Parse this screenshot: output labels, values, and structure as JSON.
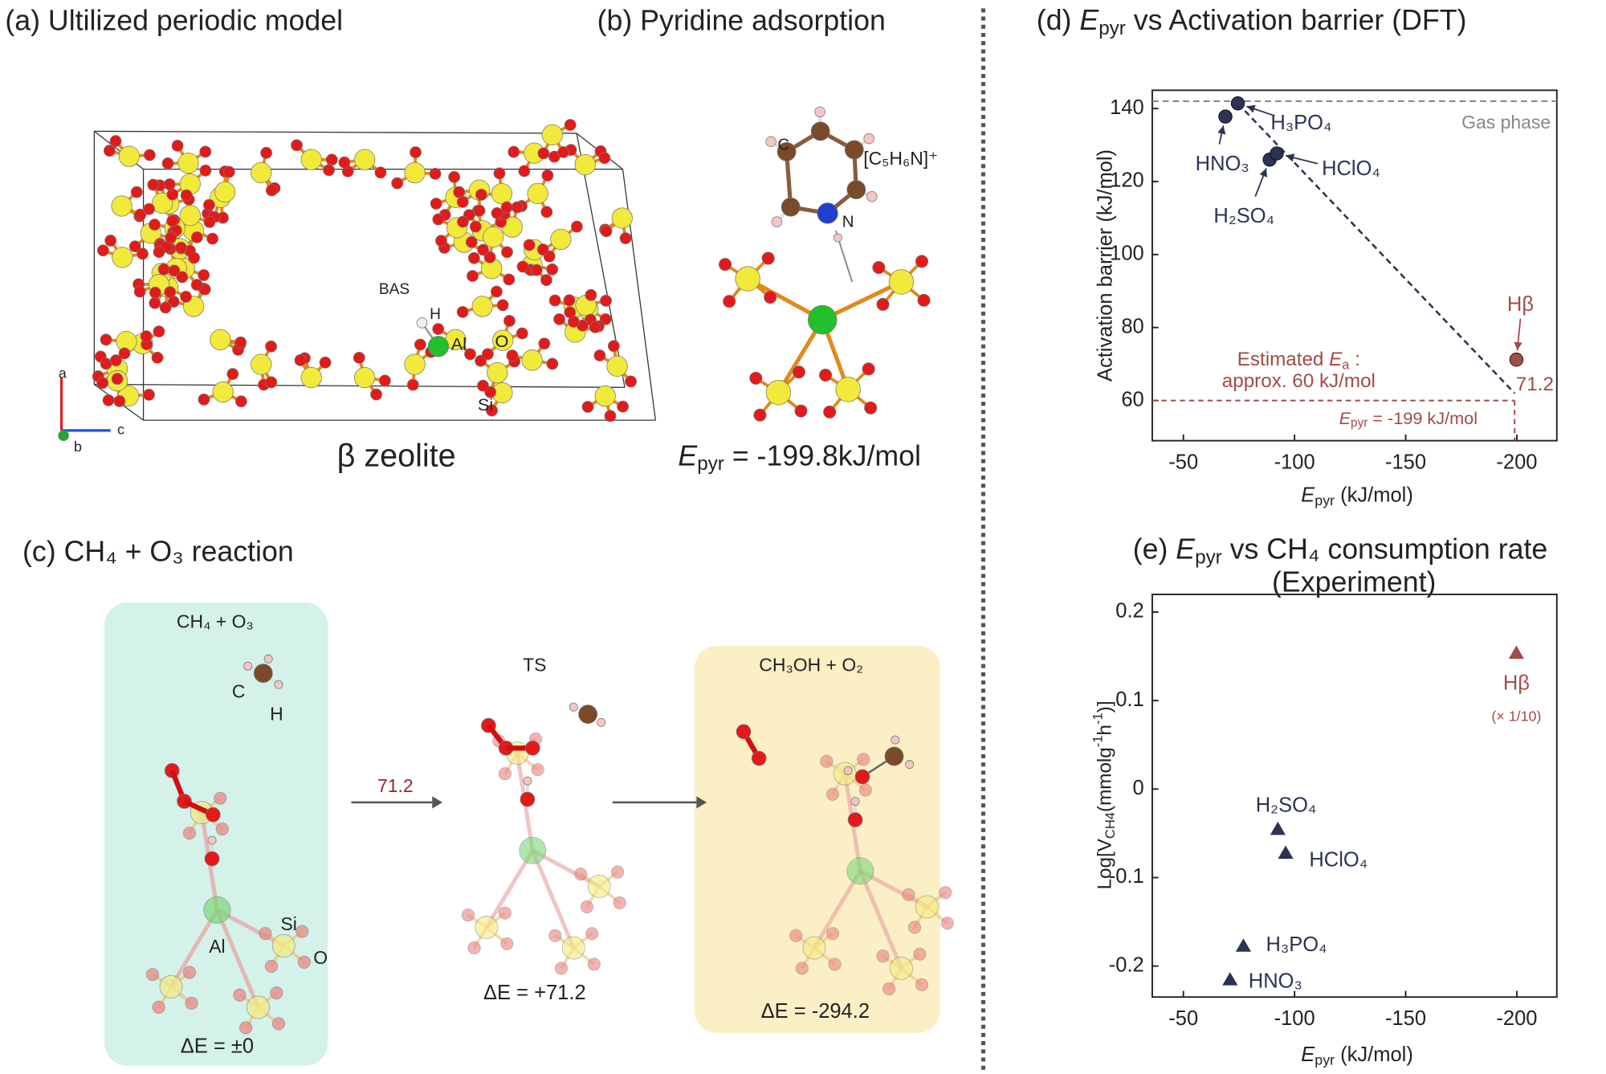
{
  "panel_a": {
    "title": "(a) Ultilized periodic model",
    "caption": "β zeolite",
    "labels": [
      "BAS",
      "H",
      "Al",
      "O",
      "Si"
    ],
    "axes": [
      "a",
      "b",
      "c"
    ]
  },
  "panel_b": {
    "title": "(b) Pyridine adsorption",
    "formula": "[C₅H₆N]⁺",
    "atoms": [
      "C",
      "N"
    ],
    "energy": {
      "symbol": "E",
      "sub": "pyr",
      "text": " = -199.8kJ/mol"
    }
  },
  "panel_c": {
    "title": "(c) CH₄ + O₃ reaction",
    "barrier": "71.2",
    "states": [
      {
        "label": "CH₄ + O₃",
        "energy": "ΔE = ±0",
        "atoms": [
          "C",
          "H",
          "Al",
          "Si",
          "O"
        ]
      },
      {
        "label": "TS",
        "energy": "ΔE = +71.2"
      },
      {
        "label": "CH₃OH + O₂",
        "energy": "ΔE = -294.2"
      }
    ]
  },
  "chart_data": [
    {
      "type": "scatter",
      "marker": "circle",
      "title": {
        "label": "(d) ",
        "symbol": "E",
        "sub": "pyr",
        "text": " vs Activation barrier (DFT)"
      },
      "xlabel": {
        "symbol": "E",
        "sub": "pyr",
        "text": " (kJ/mol)"
      },
      "ylabel": "Activation barrier (kJ/mol)",
      "xlim": [
        -36,
        -218
      ],
      "ylim": [
        49,
        145
      ],
      "xticks": [
        -50,
        -100,
        -150,
        -200
      ],
      "yticks": [
        60,
        80,
        100,
        120,
        140
      ],
      "points": [
        {
          "label": "HNO₃",
          "x": -68.9,
          "y": 137.8,
          "color": "#2d3355"
        },
        {
          "label": "H₃PO₄",
          "x": -74.5,
          "y": 141.4,
          "color": "#2d3355"
        },
        {
          "label": "H₂SO₄",
          "x": -88.8,
          "y": 126.0,
          "color": "#2d3355"
        },
        {
          "label": "HClO₄",
          "x": -92.0,
          "y": 127.7,
          "color": "#2d3355"
        },
        {
          "label": "Hβ",
          "x": -199.8,
          "y": 71.2,
          "color": "#a04c48"
        }
      ],
      "value_label_point": 4,
      "gas_phase": {
        "label": "Gas phase",
        "y": 142
      },
      "trend": {
        "x": [
          -74.5,
          -199
        ],
        "y": [
          141.4,
          62
        ],
        "color": "#2d3355"
      },
      "estimate": {
        "x": -199,
        "y": 60,
        "text1": "Estimated ",
        "symbol": "E",
        "sub": "a",
        "colon": " :",
        "text2": "approx. 60 kJ/mol",
        "epyr": {
          "symbol": "E",
          "sub": "pyr",
          "text": " = -199 kJ/mol"
        },
        "color": "#a04c48"
      }
    },
    {
      "type": "scatter",
      "marker": "triangle",
      "title": {
        "label": "(e) ",
        "symbol": "E",
        "sub": "pyr",
        "text": " vs CH₄ consumption rate",
        "line2": "(Experiment)"
      },
      "xlabel": {
        "symbol": "E",
        "sub": "pyr",
        "text": " (kJ/mol)"
      },
      "ylabel": {
        "pre": "Log[V",
        "sub": "CH4",
        "mid": "(mmolg",
        "sup1": "-1",
        "h": "h",
        "sup2": "-1",
        "post": ")]"
      },
      "xlim": [
        -36,
        -218
      ],
      "ylim": [
        -0.235,
        0.22
      ],
      "xticks": [
        -50,
        -100,
        -150,
        -200
      ],
      "yticks": [
        -0.2,
        -0.1,
        0,
        0.1,
        0.2
      ],
      "points": [
        {
          "label": "HNO₃",
          "x": -71,
          "y": -0.216,
          "color": "#2d3355"
        },
        {
          "label": "H₃PO₄",
          "x": -77,
          "y": -0.178,
          "color": "#2d3355"
        },
        {
          "label": "H₂SO₄",
          "x": -92.5,
          "y": -0.046,
          "color": "#2d3355"
        },
        {
          "label": "HClO₄",
          "x": -96,
          "y": -0.073,
          "color": "#2d3355"
        },
        {
          "label": "Hβ",
          "x": -199.8,
          "y": 0.153,
          "color": "#a04c48",
          "note": "(× 1/10)"
        }
      ]
    }
  ]
}
